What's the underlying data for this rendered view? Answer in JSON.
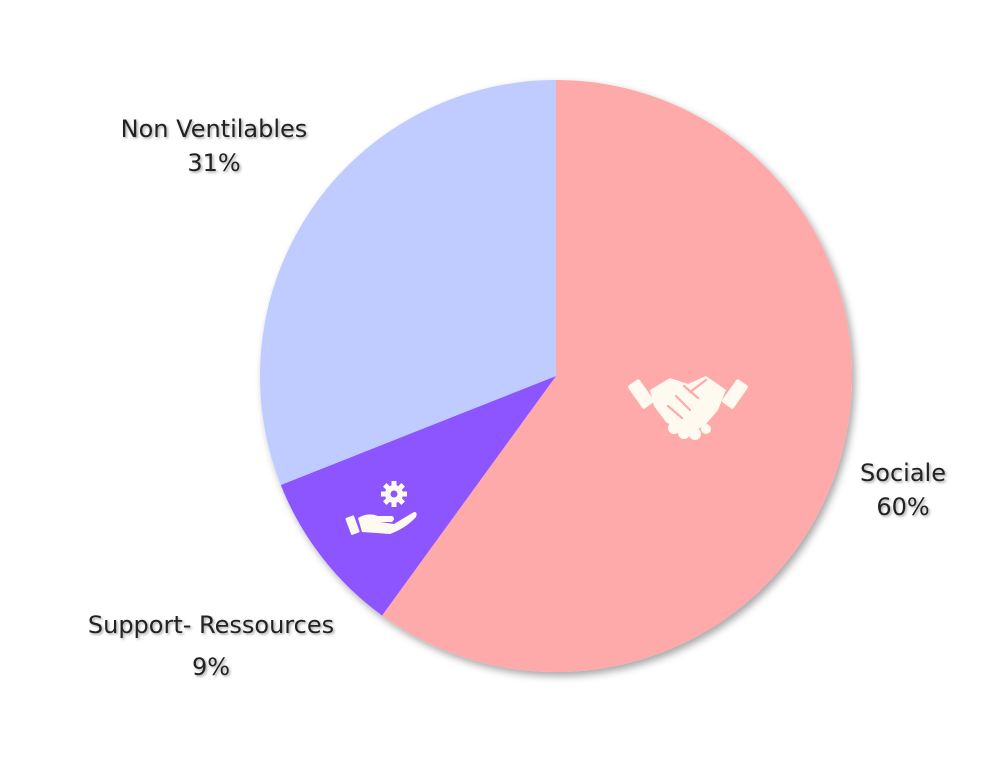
{
  "chart_data": {
    "type": "pie",
    "title": "",
    "slices": [
      {
        "name": "Sociale",
        "value": 60,
        "value_label": "60%",
        "color": "#ffaaaa",
        "icon": "handshake-icon"
      },
      {
        "name": "Support- Ressources",
        "value": 9,
        "value_label": "9%",
        "color": "#8c55ff",
        "icon": "hand-gear-icon"
      },
      {
        "name": "Non Ventilables",
        "value": 31,
        "value_label": "31%",
        "color": "#c0cbff",
        "icon": ""
      }
    ],
    "start_angle": "12 o'clock",
    "direction": "clockwise",
    "legend": "none",
    "label_color": "#222222",
    "icon_color": "#fffaf0"
  }
}
